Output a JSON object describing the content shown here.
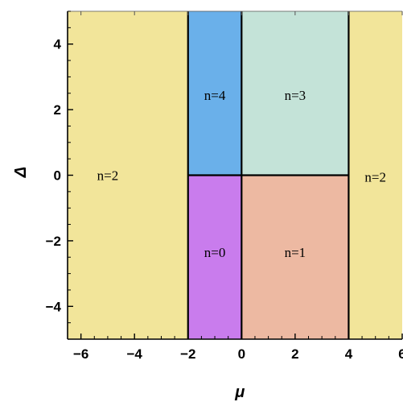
{
  "chart_data": {
    "type": "heatmap",
    "title": "",
    "xlabel": "μ",
    "ylabel": "Δ",
    "xlim": [
      -6.5,
      6
    ],
    "ylim": [
      -5,
      5
    ],
    "xticks": [
      -6,
      -4,
      -2,
      0,
      2,
      4,
      6
    ],
    "yticks": [
      -4,
      -2,
      0,
      2,
      4
    ],
    "grid": false,
    "regions": [
      {
        "label": "n=2",
        "x": [
          -6.5,
          -2
        ],
        "y": [
          -5,
          5
        ],
        "color": "#f2e59a",
        "label_at": [
          -5.0,
          0.0
        ]
      },
      {
        "label": "n=4",
        "x": [
          -2,
          0
        ],
        "y": [
          0,
          5
        ],
        "color": "#6ab0ea",
        "label_at": [
          -1.0,
          2.45
        ]
      },
      {
        "label": "n=3",
        "x": [
          0,
          4
        ],
        "y": [
          0,
          5
        ],
        "color": "#c4e3d8",
        "label_at": [
          2.0,
          2.45
        ]
      },
      {
        "label": "n=0",
        "x": [
          -2,
          0
        ],
        "y": [
          -5,
          0
        ],
        "color": "#c97ced",
        "label_at": [
          -1.0,
          -2.35
        ]
      },
      {
        "label": "n=1",
        "x": [
          0,
          4
        ],
        "y": [
          -5,
          0
        ],
        "color": "#edb9a2",
        "label_at": [
          2.0,
          -2.35
        ]
      },
      {
        "label": "n=2",
        "x": [
          4,
          6
        ],
        "y": [
          -5,
          5
        ],
        "color": "#f2e59a",
        "label_at": [
          5.0,
          -0.05
        ]
      }
    ],
    "boundaries": [
      {
        "x": [
          -2,
          -2
        ],
        "y": [
          -5,
          5
        ]
      },
      {
        "x": [
          4,
          4
        ],
        "y": [
          -5,
          5
        ]
      },
      {
        "x": [
          0,
          0
        ],
        "y": [
          -5,
          5
        ]
      },
      {
        "x": [
          -2,
          4
        ],
        "y": [
          0,
          0
        ]
      }
    ]
  }
}
